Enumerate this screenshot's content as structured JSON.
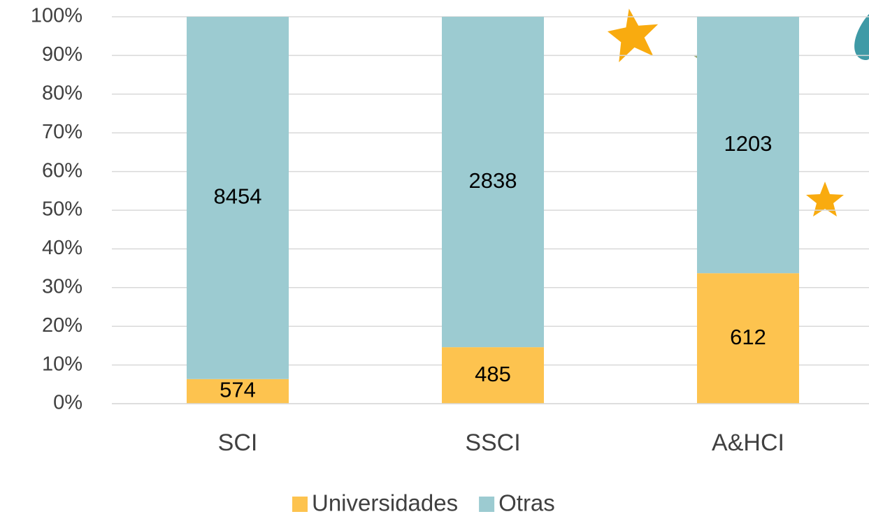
{
  "chart_data": {
    "type": "bar",
    "stacking": "percent",
    "categories": [
      "SCI",
      "SSCI",
      "A&HCI"
    ],
    "series": [
      {
        "name": "Universidades",
        "color": "#fdc34f",
        "values": [
          574,
          485,
          612
        ]
      },
      {
        "name": "Otras",
        "color": "#9ccbd1",
        "values": [
          8454,
          2838,
          1203
        ]
      }
    ],
    "ylim": [
      0,
      100
    ],
    "yticks": [
      {
        "value": 0,
        "label": "0%"
      },
      {
        "value": 10,
        "label": "10%"
      },
      {
        "value": 20,
        "label": "20%"
      },
      {
        "value": 30,
        "label": "30%"
      },
      {
        "value": 40,
        "label": "40%"
      },
      {
        "value": 50,
        "label": "50%"
      },
      {
        "value": 60,
        "label": "60%"
      },
      {
        "value": 70,
        "label": "70%"
      },
      {
        "value": 80,
        "label": "80%"
      },
      {
        "value": 90,
        "label": "90%"
      },
      {
        "value": 100,
        "label": "100%"
      }
    ],
    "grid": true,
    "legend": "bottom"
  }
}
